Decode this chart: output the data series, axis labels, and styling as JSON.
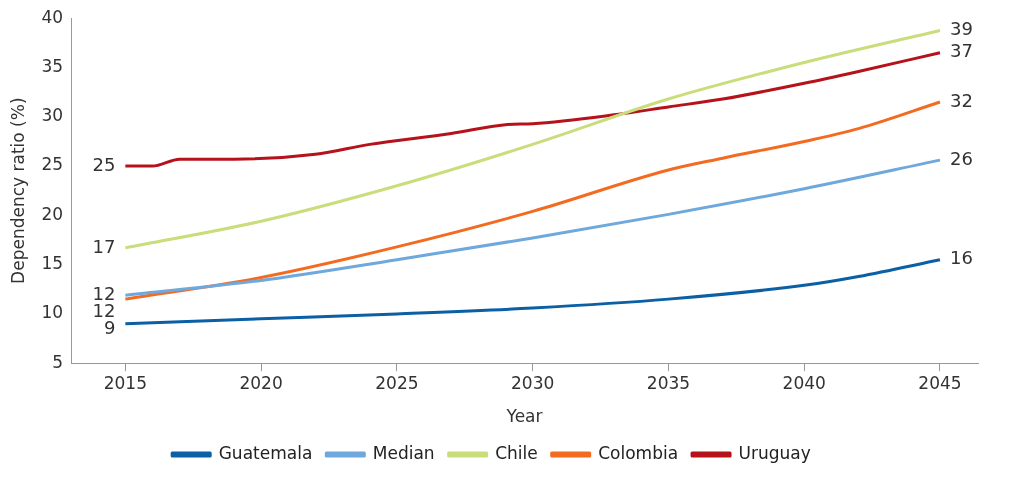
{
  "chart_data": {
    "type": "line",
    "xlabel": "Year",
    "ylabel": "Dependency ratio (%)",
    "xlim": [
      2013,
      2046.4
    ],
    "xticks": [
      2015,
      2020,
      2025,
      2030,
      2035,
      2040,
      2045
    ],
    "ylim": [
      5,
      40
    ],
    "yticks": [
      5,
      10,
      15,
      20,
      25,
      30,
      35,
      40
    ],
    "grid": false,
    "legend": "bottom",
    "marker": "none",
    "line_style": "solid",
    "series": [
      {
        "name": "Guatemala",
        "color": "#0b5fa5",
        "x": [
          2015,
          2020,
          2025,
          2030,
          2035,
          2040,
          2042,
          2045
        ],
        "values": [
          9,
          9.5,
          10,
          10.6,
          11.5,
          12.9,
          13.8,
          15.5
        ],
        "value_labels": [
          "9",
          null,
          null,
          null,
          null,
          null,
          null,
          "16"
        ]
      },
      {
        "name": "Median",
        "color": "#6fa8dc",
        "x": [
          2015,
          2020,
          2025,
          2030,
          2035,
          2040,
          2045
        ],
        "values": [
          11.9,
          13.4,
          15.5,
          17.7,
          20.1,
          22.7,
          25.6
        ],
        "value_labels": [
          "12",
          null,
          null,
          null,
          null,
          null,
          "26"
        ]
      },
      {
        "name": "Chile",
        "color": "#c9dd7a",
        "x": [
          2015,
          2020,
          2025,
          2030,
          2035,
          2040,
          2045
        ],
        "values": [
          16.7,
          19.4,
          23,
          27.2,
          31.8,
          35.5,
          38.75
        ],
        "value_labels": [
          "17",
          null,
          null,
          null,
          null,
          null,
          "39"
        ]
      },
      {
        "name": "Colombia",
        "color": "#f26b21",
        "x": [
          2015,
          2020,
          2025,
          2030,
          2035,
          2037,
          2040,
          2042,
          2045
        ],
        "values": [
          11.5,
          13.7,
          16.8,
          20.4,
          24.6,
          25.8,
          27.5,
          28.8,
          31.5
        ],
        "value_labels": [
          "12",
          null,
          null,
          null,
          null,
          null,
          null,
          null,
          "32"
        ]
      },
      {
        "name": "Uruguay",
        "color": "#b5121b",
        "x": [
          2015,
          2016,
          2017,
          2019,
          2022,
          2024,
          2027,
          2029,
          2030,
          2033,
          2035,
          2037,
          2040,
          2042,
          2045
        ],
        "values": [
          25,
          25,
          25.7,
          25.7,
          26.2,
          27.2,
          28.3,
          29.2,
          29.3,
          30.2,
          31,
          31.8,
          33.4,
          34.6,
          36.5
        ],
        "value_labels": [
          "25",
          null,
          null,
          null,
          null,
          null,
          null,
          null,
          null,
          null,
          null,
          null,
          null,
          null,
          "37"
        ]
      }
    ]
  }
}
